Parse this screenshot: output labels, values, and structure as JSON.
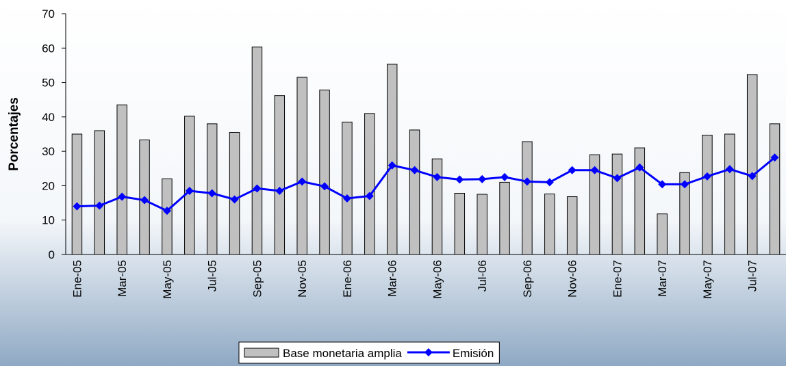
{
  "chart_data": {
    "type": "bar+line",
    "y_label": "Porcentajes",
    "categories": [
      "Ene-05",
      null,
      "Mar-05",
      null,
      "May-05",
      null,
      "Jul-05",
      null,
      "Sep-05",
      null,
      "Nov-05",
      null,
      "Ene-06",
      null,
      "Mar-06",
      null,
      "May-06",
      null,
      "Jul-06",
      null,
      "Sep-06",
      null,
      "Nov-06",
      null,
      "Ene-07",
      null,
      "Mar-07",
      null,
      "May-07",
      null,
      "Jul-07",
      null
    ],
    "series": [
      {
        "name": "Base monetaria amplia",
        "type": "bar",
        "color": "#c0c0c0",
        "values": [
          35,
          36,
          43.5,
          33.3,
          22,
          40.2,
          38,
          35.5,
          60.3,
          46.2,
          51.5,
          47.8,
          38.5,
          41,
          55.3,
          36.2,
          27.8,
          17.8,
          17.5,
          21,
          32.8,
          17.6,
          16.8,
          29,
          29.2,
          31,
          11.8,
          23.8,
          34.7,
          35,
          52.3,
          38
        ]
      },
      {
        "name": "Emisión",
        "type": "line",
        "color": "#0000ff",
        "values": [
          14,
          14.2,
          16.8,
          15.8,
          12.7,
          18.5,
          17.8,
          16,
          19.2,
          18.5,
          21.2,
          19.8,
          16.3,
          17,
          25.9,
          24.5,
          22.5,
          21.8,
          21.9,
          22.5,
          21.2,
          21,
          24.5,
          24.5,
          22.2,
          25.3,
          20.4,
          20.4,
          22.7,
          24.8,
          22.8,
          28.2
        ]
      }
    ],
    "ylim": [
      0,
      70
    ],
    "yticks": [
      0,
      10,
      20,
      30,
      40,
      50,
      60,
      70
    ],
    "grid": false
  }
}
